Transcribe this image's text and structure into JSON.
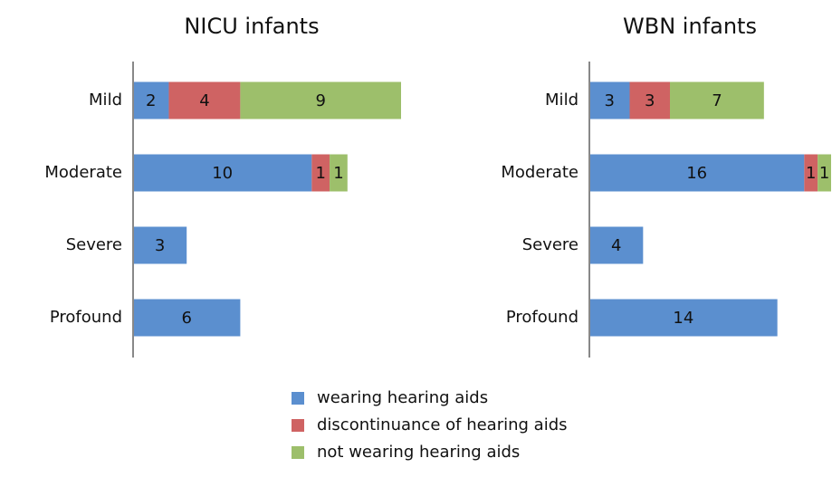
{
  "chart_data": [
    {
      "type": "stacked-barh",
      "title": "NICU infants",
      "categories": [
        "Mild",
        "Moderate",
        "Severe",
        "Profound"
      ],
      "xlim": [
        0,
        15
      ],
      "series": [
        {
          "name": "wearing hearing aids",
          "color": "#5b8fcf",
          "values": [
            2,
            10,
            3,
            6
          ]
        },
        {
          "name": "discontinuance of hearing aids",
          "color": "#cf6363",
          "values": [
            4,
            1,
            null,
            null
          ]
        },
        {
          "name": "not wearing hearing aids",
          "color": "#9dbf6b",
          "values": [
            9,
            1,
            null,
            null
          ]
        }
      ]
    },
    {
      "type": "stacked-barh",
      "title": "WBN infants",
      "categories": [
        "Mild",
        "Moderate",
        "Severe",
        "Profound"
      ],
      "xlim": [
        0,
        18
      ],
      "series": [
        {
          "color": "#5b8fcf",
          "values": [
            3,
            16,
            4,
            14
          ]
        },
        {
          "color": "#cf6363",
          "values": [
            3,
            1,
            null,
            null
          ]
        },
        {
          "color": "#9dbf6b",
          "values": [
            7,
            1,
            null,
            null
          ]
        }
      ]
    }
  ]
}
